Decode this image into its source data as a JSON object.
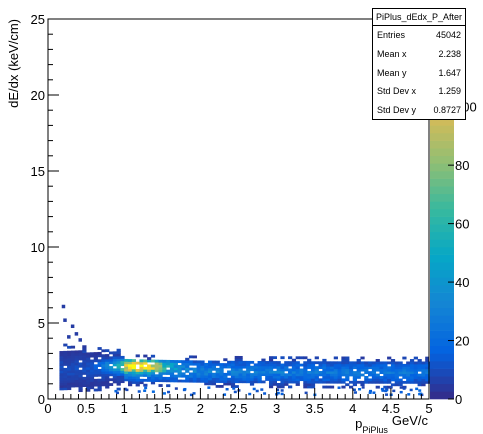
{
  "chart_data": {
    "type": "heatmap",
    "title": "",
    "xlabel_main": "p",
    "xlabel_sub": "PiPlus",
    "xlabel_unit": "GeV/c",
    "ylabel": "dE/dx (keV/cm)",
    "xlim": [
      0,
      5
    ],
    "ylim": [
      0,
      25
    ],
    "zlim": [
      0,
      130
    ],
    "xticks": [
      "0",
      "0.5",
      "1",
      "1.5",
      "2",
      "2.5",
      "3",
      "3.5",
      "4",
      "4.5",
      "5"
    ],
    "yticks": [
      "0",
      "5",
      "10",
      "15",
      "20",
      "25"
    ],
    "zticks": [
      "0",
      "20",
      "40",
      "60",
      "80",
      "100"
    ],
    "colormap": [
      "#352a87",
      "#0363e1",
      "#1485d4",
      "#06a7c6",
      "#38b99e",
      "#92bf73",
      "#d9ba56",
      "#fcce2e",
      "#f9fb0e"
    ],
    "band": {
      "x_start": 0.15,
      "x_end": 5.0,
      "y_center_min": 1.9,
      "y_center_far": 1.75,
      "peak_x": 1.2,
      "peak_y": 2.2,
      "peak_value": 130
    },
    "outliers": [
      [
        0.18,
        6.2
      ],
      [
        0.2,
        5.3
      ],
      [
        0.3,
        4.9
      ],
      [
        0.35,
        4.4
      ],
      [
        0.25,
        4.2
      ],
      [
        0.4,
        4.0
      ]
    ]
  },
  "stats": {
    "title": "PiPlus_dEdx_P_After",
    "rows": [
      {
        "label": "Entries",
        "value": "45042"
      },
      {
        "label": "Mean x",
        "value": "2.238"
      },
      {
        "label": "Mean y",
        "value": "1.647"
      },
      {
        "label": "Std Dev x",
        "value": "1.259"
      },
      {
        "label": "Std Dev y",
        "value": "0.8727"
      }
    ]
  }
}
